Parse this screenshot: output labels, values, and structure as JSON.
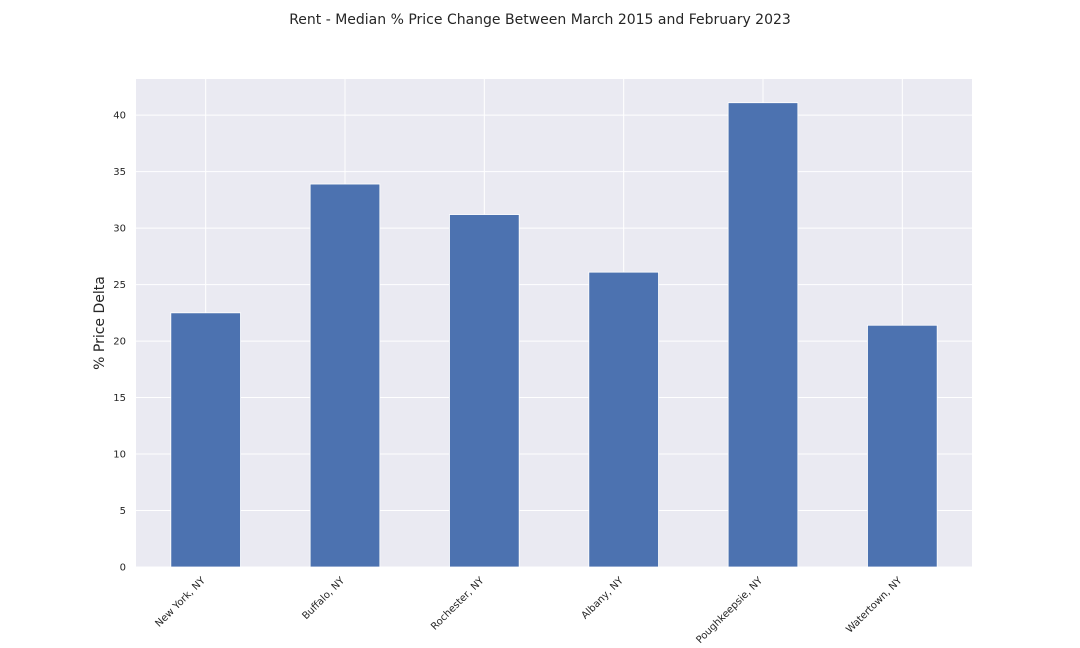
{
  "chart_data": {
    "type": "bar",
    "title": "Rent - Median % Price Change Between March 2015 and February 2023",
    "xlabel": "",
    "ylabel": "% Price Delta",
    "categories": [
      "New York, NY",
      "Buffalo, NY",
      "Rochester, NY",
      "Albany, NY",
      "Poughkeepsie, NY",
      "Watertown, NY"
    ],
    "values": [
      22.5,
      33.9,
      31.2,
      26.1,
      41.1,
      21.4
    ],
    "ylim": [
      0,
      43.2
    ],
    "yticks": [
      0,
      5,
      10,
      15,
      20,
      25,
      30,
      35,
      40
    ],
    "grid": true,
    "legend": "none",
    "colors": {
      "bar": "#4c72b0",
      "plot_background": "#eaeaf2",
      "grid": "#ffffff",
      "text": "#262626"
    }
  }
}
